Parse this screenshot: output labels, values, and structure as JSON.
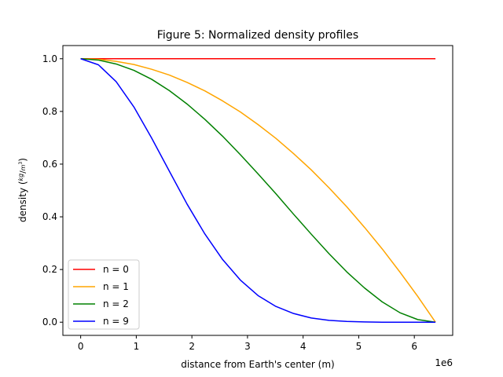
{
  "chart_data": {
    "type": "line",
    "title": "Figure 5: Normalized density profiles",
    "xlabel": "distance from Earth's center (m)",
    "ylabel_prefix": "density (",
    "ylabel_num": "kg",
    "ylabel_den": "m",
    "ylabel_den_exp": "3",
    "ylabel_suffix": ")",
    "x_offset_label": "1e6",
    "xlim": [
      -0.32,
      6.69
    ],
    "ylim": [
      -0.05,
      1.05
    ],
    "x_ticks": [
      0,
      1,
      2,
      3,
      4,
      5,
      6
    ],
    "x_tick_labels": [
      "0",
      "1",
      "2",
      "3",
      "4",
      "5",
      "6"
    ],
    "y_ticks": [
      0.0,
      0.2,
      0.4,
      0.6,
      0.8,
      1.0
    ],
    "y_tick_labels": [
      "0.0",
      "0.2",
      "0.4",
      "0.6",
      "0.8",
      "1.0"
    ],
    "grid": false,
    "legend_position": "lower-left",
    "x": [
      0,
      0.319,
      0.638,
      0.957,
      1.276,
      1.595,
      1.914,
      2.233,
      2.552,
      2.871,
      3.19,
      3.509,
      3.828,
      4.147,
      4.466,
      4.785,
      5.104,
      5.423,
      5.742,
      6.061,
      6.38
    ],
    "series": [
      {
        "name": "n = 0",
        "color": "#ff0000",
        "values": [
          1,
          1,
          1,
          1,
          1,
          1,
          1,
          1,
          1,
          1,
          1,
          1,
          1,
          1,
          1,
          1,
          1,
          1,
          1,
          1,
          1
        ]
      },
      {
        "name": "n = 1",
        "color": "#ffa500",
        "values": [
          1.0,
          0.998,
          0.99,
          0.978,
          0.96,
          0.938,
          0.91,
          0.878,
          0.84,
          0.798,
          0.75,
          0.698,
          0.64,
          0.578,
          0.51,
          0.438,
          0.36,
          0.278,
          0.19,
          0.098,
          0.0
        ]
      },
      {
        "name": "n = 2",
        "color": "#008000",
        "values": [
          1.0,
          0.995,
          0.98,
          0.956,
          0.922,
          0.879,
          0.828,
          0.77,
          0.706,
          0.636,
          0.563,
          0.488,
          0.41,
          0.334,
          0.26,
          0.191,
          0.13,
          0.077,
          0.036,
          0.01,
          0.0
        ]
      },
      {
        "name": "n = 9",
        "color": "#0000ff",
        "values": [
          1.0,
          0.977,
          0.913,
          0.817,
          0.699,
          0.573,
          0.448,
          0.335,
          0.238,
          0.16,
          0.101,
          0.06,
          0.033,
          0.016,
          0.007,
          0.003,
          0.001,
          0.0,
          0.0,
          0.0,
          0.0
        ]
      }
    ]
  }
}
